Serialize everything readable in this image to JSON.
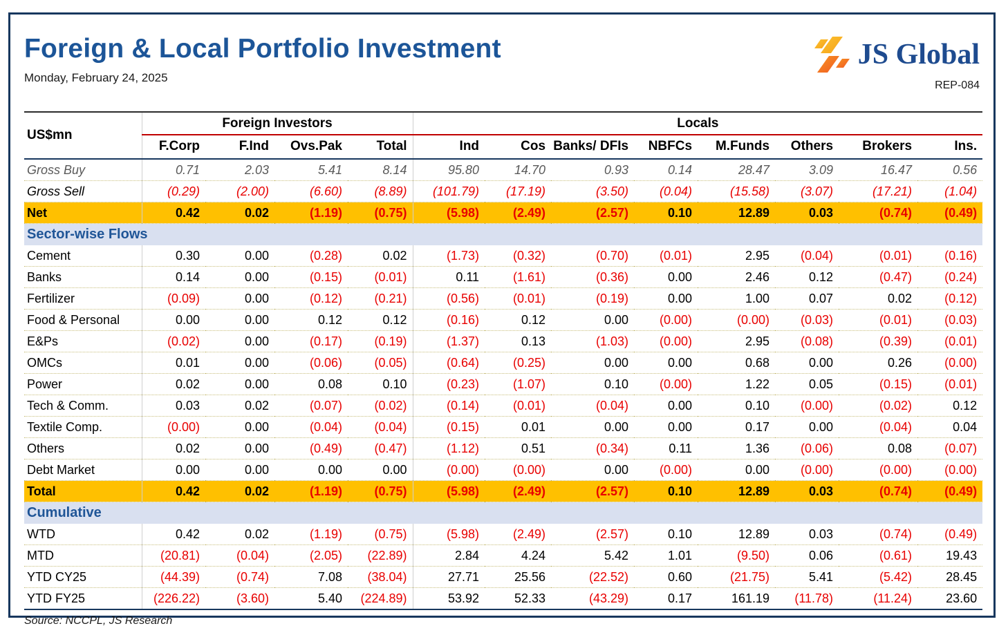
{
  "header": {
    "title": "Foreign & Local Portfolio Investment",
    "date": "Monday, February 24, 2025",
    "report_no": "REP-084",
    "logo": {
      "text": "JS Global"
    }
  },
  "colors": {
    "frame_navy": "#17375E",
    "title_blue": "#1C5598",
    "highlight_amber": "#FFC000",
    "negative_red": "#E80000",
    "section_band": "#D9E0F0",
    "group_underline_maroon": "#C00000",
    "logo_orange": "#F47B20",
    "logo_gold": "#FBB040"
  },
  "table": {
    "unit_label": "US$mn",
    "groups": [
      {
        "label": "Foreign Investors",
        "span": 4
      },
      {
        "label": "Locals",
        "span": 8
      }
    ],
    "columns": [
      "F.Corp",
      "F.Ind",
      "Ovs.Pak",
      "Total",
      "Ind",
      "Cos",
      "Banks/ DFIs",
      "NBFCs",
      "M.Funds",
      "Others",
      "Brokers",
      "Ins."
    ],
    "rows": [
      {
        "type": "data",
        "style": "gross-buy",
        "label": "Gross Buy",
        "values": [
          "0.71",
          "2.03",
          "5.41",
          "8.14",
          "95.80",
          "14.70",
          "0.93",
          "0.14",
          "28.47",
          "3.09",
          "16.47",
          "0.56"
        ]
      },
      {
        "type": "data",
        "style": "gross-sell",
        "label": "Gross Sell",
        "values": [
          "(0.29)",
          "(2.00)",
          "(6.60)",
          "(8.89)",
          "(101.79)",
          "(17.19)",
          "(3.50)",
          "(0.04)",
          "(15.58)",
          "(3.07)",
          "(17.21)",
          "(1.04)"
        ]
      },
      {
        "type": "data",
        "style": "highlight",
        "label": "Net",
        "values": [
          "0.42",
          "0.02",
          "(1.19)",
          "(0.75)",
          "(5.98)",
          "(2.49)",
          "(2.57)",
          "0.10",
          "12.89",
          "0.03",
          "(0.74)",
          "(0.49)"
        ]
      },
      {
        "type": "section",
        "label": "Sector-wise Flows"
      },
      {
        "type": "data",
        "style": "normal",
        "label": "Cement",
        "values": [
          "0.30",
          "0.00",
          "(0.28)",
          "0.02",
          "(1.73)",
          "(0.32)",
          "(0.70)",
          "(0.01)",
          "2.95",
          "(0.04)",
          "(0.01)",
          "(0.16)"
        ]
      },
      {
        "type": "data",
        "style": "normal",
        "label": "Banks",
        "values": [
          "0.14",
          "0.00",
          "(0.15)",
          "(0.01)",
          "0.11",
          "(1.61)",
          "(0.36)",
          "0.00",
          "2.46",
          "0.12",
          "(0.47)",
          "(0.24)"
        ]
      },
      {
        "type": "data",
        "style": "normal",
        "label": "Fertilizer",
        "values": [
          "(0.09)",
          "0.00",
          "(0.12)",
          "(0.21)",
          "(0.56)",
          "(0.01)",
          "(0.19)",
          "0.00",
          "1.00",
          "0.07",
          "0.02",
          "(0.12)"
        ]
      },
      {
        "type": "data",
        "style": "normal",
        "label": "Food & Personal",
        "values": [
          "0.00",
          "0.00",
          "0.12",
          "0.12",
          "(0.16)",
          "0.12",
          "0.00",
          "(0.00)",
          "(0.00)",
          "(0.03)",
          "(0.01)",
          "(0.03)"
        ]
      },
      {
        "type": "data",
        "style": "normal",
        "label": "E&Ps",
        "values": [
          "(0.02)",
          "0.00",
          "(0.17)",
          "(0.19)",
          "(1.37)",
          "0.13",
          "(1.03)",
          "(0.00)",
          "2.95",
          "(0.08)",
          "(0.39)",
          "(0.01)"
        ]
      },
      {
        "type": "data",
        "style": "normal",
        "label": "OMCs",
        "values": [
          "0.01",
          "0.00",
          "(0.06)",
          "(0.05)",
          "(0.64)",
          "(0.25)",
          "0.00",
          "0.00",
          "0.68",
          "0.00",
          "0.26",
          "(0.00)"
        ]
      },
      {
        "type": "data",
        "style": "normal",
        "label": "Power",
        "values": [
          "0.02",
          "0.00",
          "0.08",
          "0.10",
          "(0.23)",
          "(1.07)",
          "0.10",
          "(0.00)",
          "1.22",
          "0.05",
          "(0.15)",
          "(0.01)"
        ]
      },
      {
        "type": "data",
        "style": "normal",
        "label": "Tech & Comm.",
        "values": [
          "0.03",
          "0.02",
          "(0.07)",
          "(0.02)",
          "(0.14)",
          "(0.01)",
          "(0.04)",
          "0.00",
          "0.10",
          "(0.00)",
          "(0.02)",
          "0.12"
        ]
      },
      {
        "type": "data",
        "style": "normal",
        "label": "Textile Comp.",
        "values": [
          "(0.00)",
          "0.00",
          "(0.04)",
          "(0.04)",
          "(0.15)",
          "0.01",
          "0.00",
          "0.00",
          "0.17",
          "0.00",
          "(0.04)",
          "0.04"
        ]
      },
      {
        "type": "data",
        "style": "normal",
        "label": "Others",
        "values": [
          "0.02",
          "0.00",
          "(0.49)",
          "(0.47)",
          "(1.12)",
          "0.51",
          "(0.34)",
          "0.11",
          "1.36",
          "(0.06)",
          "0.08",
          "(0.07)"
        ]
      },
      {
        "type": "data",
        "style": "normal",
        "label": "Debt Market",
        "values": [
          "0.00",
          "0.00",
          "0.00",
          "0.00",
          "(0.00)",
          "(0.00)",
          "0.00",
          "(0.00)",
          "0.00",
          "(0.00)",
          "(0.00)",
          "(0.00)"
        ]
      },
      {
        "type": "data",
        "style": "highlight",
        "label": "Total",
        "values": [
          "0.42",
          "0.02",
          "(1.19)",
          "(0.75)",
          "(5.98)",
          "(2.49)",
          "(2.57)",
          "0.10",
          "12.89",
          "0.03",
          "(0.74)",
          "(0.49)"
        ]
      },
      {
        "type": "section",
        "label": "Cumulative"
      },
      {
        "type": "data",
        "style": "normal",
        "label": "WTD",
        "values": [
          "0.42",
          "0.02",
          "(1.19)",
          "(0.75)",
          "(5.98)",
          "(2.49)",
          "(2.57)",
          "0.10",
          "12.89",
          "0.03",
          "(0.74)",
          "(0.49)"
        ]
      },
      {
        "type": "data",
        "style": "normal",
        "label": "MTD",
        "values": [
          "(20.81)",
          "(0.04)",
          "(2.05)",
          "(22.89)",
          "2.84",
          "4.24",
          "5.42",
          "1.01",
          "(9.50)",
          "0.06",
          "(0.61)",
          "19.43"
        ]
      },
      {
        "type": "data",
        "style": "normal",
        "label": "YTD CY25",
        "values": [
          "(44.39)",
          "(0.74)",
          "7.08",
          "(38.04)",
          "27.71",
          "25.56",
          "(22.52)",
          "0.60",
          "(21.75)",
          "5.41",
          "(5.42)",
          "28.45"
        ]
      },
      {
        "type": "data",
        "style": "normal",
        "label": "YTD FY25",
        "values": [
          "(226.22)",
          "(3.60)",
          "5.40",
          "(224.89)",
          "53.92",
          "52.33",
          "(43.29)",
          "0.17",
          "161.19",
          "(11.78)",
          "(11.24)",
          "23.60"
        ]
      }
    ]
  },
  "footer": {
    "source": "Source: NCCPL, JS Research"
  }
}
